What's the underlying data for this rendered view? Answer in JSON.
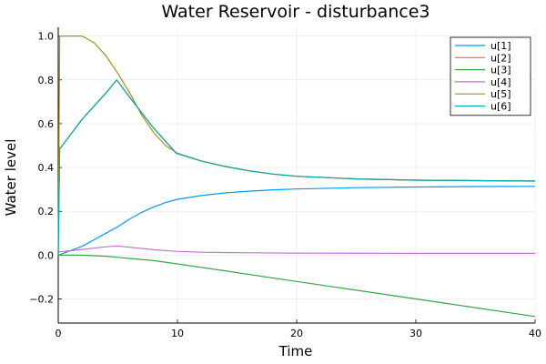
{
  "chart_data": {
    "type": "line",
    "title": "Water Reservoir - disturbance3",
    "xlabel": "Time",
    "ylabel": "Water level",
    "xlim": [
      0,
      40
    ],
    "ylim": [
      -0.31,
      1.04
    ],
    "xticks": [
      0,
      10,
      20,
      30,
      40
    ],
    "yticks": [
      -0.2,
      0.0,
      0.2,
      0.4,
      0.6,
      0.8,
      1.0
    ],
    "xtick_labels": [
      "0",
      "10",
      "20",
      "30",
      "40"
    ],
    "ytick_labels": [
      "−0.2",
      "0.0",
      "0.2",
      "0.4",
      "0.6",
      "0.8",
      "1.0"
    ],
    "grid": true,
    "legend_position": "top-right",
    "series": [
      {
        "name": "u[1]",
        "color": "#009AFA",
        "x": [
          0,
          1,
          2,
          3,
          4,
          5,
          6,
          7,
          8,
          9,
          10,
          12,
          14,
          16,
          18,
          20,
          25,
          30,
          35,
          40
        ],
        "y": [
          0.0,
          0.02,
          0.04,
          0.07,
          0.1,
          0.13,
          0.165,
          0.195,
          0.22,
          0.24,
          0.255,
          0.272,
          0.284,
          0.292,
          0.298,
          0.302,
          0.308,
          0.311,
          0.313,
          0.314
        ]
      },
      {
        "name": "u[2]",
        "color": "#E26F46",
        "x": [
          0,
          0.12,
          0.2,
          2,
          4,
          4.9,
          6,
          8,
          9.9,
          12,
          14,
          16,
          18,
          20,
          25,
          30,
          35,
          40
        ],
        "y": [
          0.0,
          0.49,
          0.49,
          0.62,
          0.74,
          0.8,
          0.72,
          0.58,
          0.465,
          0.43,
          0.405,
          0.385,
          0.37,
          0.36,
          0.348,
          0.342,
          0.34,
          0.338
        ]
      },
      {
        "name": "u[3]",
        "color": "#3DA44E",
        "x": [
          0,
          2,
          4,
          6,
          8,
          10,
          15,
          20,
          25,
          30,
          35,
          40
        ],
        "y": [
          0.0,
          0.0,
          -0.005,
          -0.015,
          -0.025,
          -0.04,
          -0.08,
          -0.12,
          -0.16,
          -0.2,
          -0.24,
          -0.28
        ]
      },
      {
        "name": "u[4]",
        "color": "#C271D2",
        "x": [
          0,
          1,
          2,
          3,
          4,
          4.9,
          6,
          8,
          10,
          12,
          15,
          20,
          30,
          40
        ],
        "y": [
          0.015,
          0.02,
          0.026,
          0.032,
          0.038,
          0.042,
          0.036,
          0.025,
          0.017,
          0.013,
          0.011,
          0.009,
          0.008,
          0.008
        ]
      },
      {
        "name": "u[5]",
        "color": "#AC8D18",
        "x": [
          0,
          0.12,
          0.2,
          1,
          2,
          3,
          4,
          5,
          6,
          7,
          8,
          9,
          10,
          12,
          14,
          16,
          18,
          20,
          25,
          30,
          35,
          40
        ],
        "y": [
          0.0,
          1.0,
          1.0,
          1.0,
          1.0,
          0.97,
          0.91,
          0.83,
          0.74,
          0.64,
          0.56,
          0.5,
          0.465,
          0.43,
          0.405,
          0.385,
          0.37,
          0.36,
          0.348,
          0.342,
          0.34,
          0.338
        ]
      },
      {
        "name": "u[6]",
        "color": "#00A9AD",
        "x": [
          0,
          0.12,
          0.2,
          2,
          4,
          4.9,
          6,
          8,
          9.9,
          12,
          14,
          16,
          18,
          20,
          25,
          30,
          35,
          40
        ],
        "y": [
          0.0,
          0.49,
          0.49,
          0.62,
          0.74,
          0.8,
          0.72,
          0.58,
          0.465,
          0.43,
          0.405,
          0.385,
          0.37,
          0.36,
          0.348,
          0.342,
          0.34,
          0.338
        ]
      }
    ]
  }
}
